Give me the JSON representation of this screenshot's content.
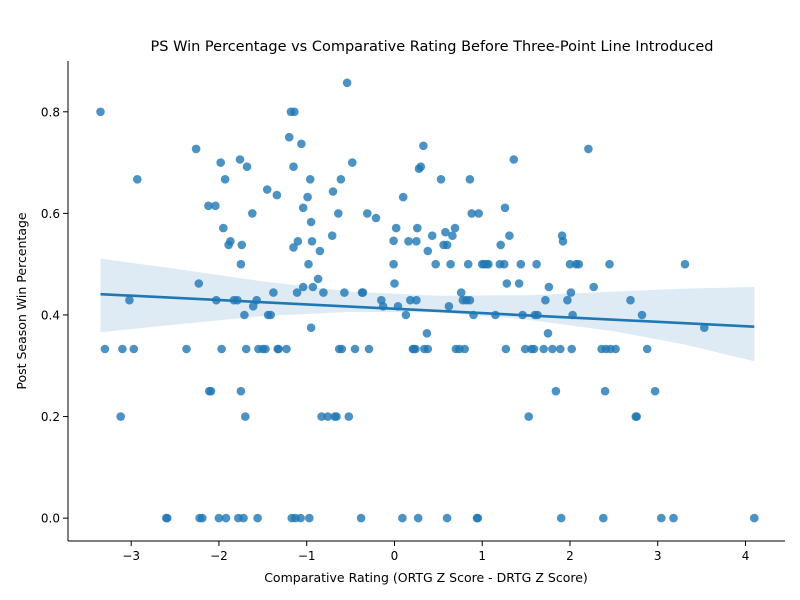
{
  "chart_data": {
    "type": "scatter",
    "title": "PS Win Percentage vs Comparative Rating Before Three-Point Line Introduced",
    "xlabel": "Comparative Rating (ORTG Z Score - DRTG Z Score)",
    "ylabel": "Post Season Win Percentage",
    "xlim": [
      -3.72,
      4.45
    ],
    "ylim": [
      -0.045,
      0.9
    ],
    "xticks": [
      -3,
      -2,
      -1,
      0,
      1,
      2,
      3,
      4
    ],
    "yticks": [
      0.0,
      0.2,
      0.4,
      0.6,
      0.8
    ],
    "xtick_labels": [
      "−3",
      "−2",
      "−1",
      "0",
      "1",
      "2",
      "3",
      "4"
    ],
    "ytick_labels": [
      "0.0",
      "0.2",
      "0.4",
      "0.6",
      "0.8"
    ],
    "grid": false,
    "colors": {
      "points": "#1f77b4",
      "fit": "#1f77b4"
    },
    "regression": {
      "x": [
        -3.35,
        4.1
      ],
      "y": [
        0.441,
        0.377
      ],
      "ci_x": [
        -3.35,
        -2.5,
        -1.5,
        -0.5,
        0.5,
        1.5,
        2.5,
        3.3,
        4.1
      ],
      "ci_lower": [
        0.366,
        0.381,
        0.398,
        0.406,
        0.405,
        0.391,
        0.368,
        0.342,
        0.309
      ],
      "ci_upper": [
        0.511,
        0.491,
        0.466,
        0.446,
        0.438,
        0.439,
        0.446,
        0.452,
        0.455
      ]
    },
    "points": [
      [
        -3.35,
        0.8
      ],
      [
        -3.3,
        0.333
      ],
      [
        -3.12,
        0.2
      ],
      [
        -3.1,
        0.333
      ],
      [
        -3.02,
        0.429
      ],
      [
        -2.97,
        0.333
      ],
      [
        -2.93,
        0.667
      ],
      [
        -2.6,
        0.0
      ],
      [
        -2.59,
        0.0
      ],
      [
        -2.37,
        0.333
      ],
      [
        -2.26,
        0.727
      ],
      [
        -2.23,
        0.462
      ],
      [
        -2.22,
        0.0
      ],
      [
        -2.19,
        0.0
      ],
      [
        -2.12,
        0.615
      ],
      [
        -2.11,
        0.25
      ],
      [
        -2.09,
        0.25
      ],
      [
        -2.04,
        0.615
      ],
      [
        -2.03,
        0.429
      ],
      [
        -2.0,
        0.0
      ],
      [
        -1.98,
        0.7
      ],
      [
        -1.97,
        0.333
      ],
      [
        -1.95,
        0.571
      ],
      [
        -1.93,
        0.667
      ],
      [
        -1.92,
        0.0
      ],
      [
        -1.89,
        0.538
      ],
      [
        -1.87,
        0.545
      ],
      [
        -1.83,
        0.429
      ],
      [
        -1.79,
        0.429
      ],
      [
        -1.78,
        0.0
      ],
      [
        -1.76,
        0.706
      ],
      [
        -1.75,
        0.5
      ],
      [
        -1.75,
        0.25
      ],
      [
        -1.74,
        0.538
      ],
      [
        -1.72,
        0.0
      ],
      [
        -1.71,
        0.4
      ],
      [
        -1.7,
        0.2
      ],
      [
        -1.69,
        0.333
      ],
      [
        -1.68,
        0.692
      ],
      [
        -1.62,
        0.6
      ],
      [
        -1.61,
        0.417
      ],
      [
        -1.57,
        0.429
      ],
      [
        -1.56,
        0.0
      ],
      [
        -1.55,
        0.333
      ],
      [
        -1.5,
        0.333
      ],
      [
        -1.47,
        0.333
      ],
      [
        -1.45,
        0.647
      ],
      [
        -1.44,
        0.4
      ],
      [
        -1.41,
        0.4
      ],
      [
        -1.38,
        0.444
      ],
      [
        -1.34,
        0.636
      ],
      [
        -1.33,
        0.333
      ],
      [
        -1.32,
        0.333
      ],
      [
        -1.23,
        0.333
      ],
      [
        -1.2,
        0.75
      ],
      [
        -1.18,
        0.8
      ],
      [
        -1.17,
        0.0
      ],
      [
        -1.15,
        0.692
      ],
      [
        -1.15,
        0.533
      ],
      [
        -1.14,
        0.8
      ],
      [
        -1.13,
        0.0
      ],
      [
        -1.11,
        0.444
      ],
      [
        -1.1,
        0.545
      ],
      [
        -1.07,
        0.0
      ],
      [
        -1.06,
        0.737
      ],
      [
        -1.04,
        0.611
      ],
      [
        -1.04,
        0.455
      ],
      [
        -0.99,
        0.632
      ],
      [
        -0.98,
        0.5
      ],
      [
        -0.97,
        0.0
      ],
      [
        -0.96,
        0.667
      ],
      [
        -0.95,
        0.583
      ],
      [
        -0.95,
        0.375
      ],
      [
        -0.94,
        0.545
      ],
      [
        -0.93,
        0.455
      ],
      [
        -0.87,
        0.471
      ],
      [
        -0.85,
        0.526
      ],
      [
        -0.83,
        0.2
      ],
      [
        -0.81,
        0.444
      ],
      [
        -0.76,
        0.2
      ],
      [
        -0.71,
        0.556
      ],
      [
        -0.7,
        0.643
      ],
      [
        -0.68,
        0.2
      ],
      [
        -0.66,
        0.2
      ],
      [
        -0.64,
        0.6
      ],
      [
        -0.63,
        0.333
      ],
      [
        -0.61,
        0.667
      ],
      [
        -0.6,
        0.333
      ],
      [
        -0.57,
        0.444
      ],
      [
        -0.54,
        0.857
      ],
      [
        -0.52,
        0.2
      ],
      [
        -0.48,
        0.7
      ],
      [
        -0.45,
        0.333
      ],
      [
        -0.38,
        0.0
      ],
      [
        -0.37,
        0.444
      ],
      [
        -0.36,
        0.444
      ],
      [
        -0.31,
        0.6
      ],
      [
        -0.29,
        0.333
      ],
      [
        -0.21,
        0.591
      ],
      [
        -0.15,
        0.429
      ],
      [
        -0.13,
        0.417
      ],
      [
        -0.01,
        0.5
      ],
      [
        -0.01,
        0.546
      ],
      [
        0.0,
        0.462
      ],
      [
        0.02,
        0.571
      ],
      [
        0.04,
        0.417
      ],
      [
        0.09,
        0.0
      ],
      [
        0.1,
        0.632
      ],
      [
        0.13,
        0.4
      ],
      [
        0.16,
        0.545
      ],
      [
        0.18,
        0.429
      ],
      [
        0.21,
        0.333
      ],
      [
        0.22,
        0.333
      ],
      [
        0.24,
        0.333
      ],
      [
        0.25,
        0.429
      ],
      [
        0.25,
        0.545
      ],
      [
        0.26,
        0.571
      ],
      [
        0.27,
        0.0
      ],
      [
        0.28,
        0.688
      ],
      [
        0.3,
        0.692
      ],
      [
        0.33,
        0.733
      ],
      [
        0.34,
        0.333
      ],
      [
        0.37,
        0.364
      ],
      [
        0.38,
        0.526
      ],
      [
        0.38,
        0.333
      ],
      [
        0.43,
        0.556
      ],
      [
        0.47,
        0.5
      ],
      [
        0.53,
        0.667
      ],
      [
        0.56,
        0.538
      ],
      [
        0.58,
        0.563
      ],
      [
        0.6,
        0.0
      ],
      [
        0.6,
        0.538
      ],
      [
        0.62,
        0.417
      ],
      [
        0.64,
        0.5
      ],
      [
        0.66,
        0.556
      ],
      [
        0.69,
        0.571
      ],
      [
        0.7,
        0.333
      ],
      [
        0.74,
        0.333
      ],
      [
        0.76,
        0.444
      ],
      [
        0.78,
        0.429
      ],
      [
        0.8,
        0.333
      ],
      [
        0.82,
        0.429
      ],
      [
        0.84,
        0.5
      ],
      [
        0.86,
        0.429
      ],
      [
        0.86,
        0.667
      ],
      [
        0.88,
        0.6
      ],
      [
        0.9,
        0.4
      ],
      [
        0.94,
        0.0
      ],
      [
        0.95,
        0.0
      ],
      [
        0.96,
        0.6
      ],
      [
        1.0,
        0.5
      ],
      [
        1.02,
        0.5
      ],
      [
        1.05,
        0.5
      ],
      [
        1.07,
        0.5
      ],
      [
        1.15,
        0.4
      ],
      [
        1.2,
        0.5
      ],
      [
        1.21,
        0.538
      ],
      [
        1.25,
        0.5
      ],
      [
        1.26,
        0.611
      ],
      [
        1.27,
        0.333
      ],
      [
        1.28,
        0.462
      ],
      [
        1.31,
        0.556
      ],
      [
        1.36,
        0.706
      ],
      [
        1.42,
        0.462
      ],
      [
        1.44,
        0.5
      ],
      [
        1.46,
        0.4
      ],
      [
        1.49,
        0.333
      ],
      [
        1.53,
        0.2
      ],
      [
        1.56,
        0.333
      ],
      [
        1.59,
        0.333
      ],
      [
        1.6,
        0.4
      ],
      [
        1.62,
        0.5
      ],
      [
        1.63,
        0.4
      ],
      [
        1.7,
        0.333
      ],
      [
        1.72,
        0.429
      ],
      [
        1.75,
        0.364
      ],
      [
        1.76,
        0.455
      ],
      [
        1.8,
        0.333
      ],
      [
        1.84,
        0.25
      ],
      [
        1.89,
        0.333
      ],
      [
        1.9,
        0.0
      ],
      [
        1.91,
        0.556
      ],
      [
        1.92,
        0.545
      ],
      [
        1.97,
        0.429
      ],
      [
        2.0,
        0.5
      ],
      [
        2.01,
        0.444
      ],
      [
        2.02,
        0.333
      ],
      [
        2.03,
        0.4
      ],
      [
        2.07,
        0.5
      ],
      [
        2.1,
        0.5
      ],
      [
        2.21,
        0.727
      ],
      [
        2.27,
        0.455
      ],
      [
        2.36,
        0.333
      ],
      [
        2.38,
        0.0
      ],
      [
        2.4,
        0.25
      ],
      [
        2.41,
        0.333
      ],
      [
        2.45,
        0.5
      ],
      [
        2.46,
        0.333
      ],
      [
        2.52,
        0.333
      ],
      [
        2.69,
        0.429
      ],
      [
        2.75,
        0.2
      ],
      [
        2.76,
        0.2
      ],
      [
        2.82,
        0.4
      ],
      [
        2.88,
        0.333
      ],
      [
        2.97,
        0.25
      ],
      [
        3.04,
        0.0
      ],
      [
        3.18,
        0.0
      ],
      [
        3.31,
        0.5
      ],
      [
        3.53,
        0.375
      ],
      [
        4.1,
        0.0
      ]
    ]
  }
}
